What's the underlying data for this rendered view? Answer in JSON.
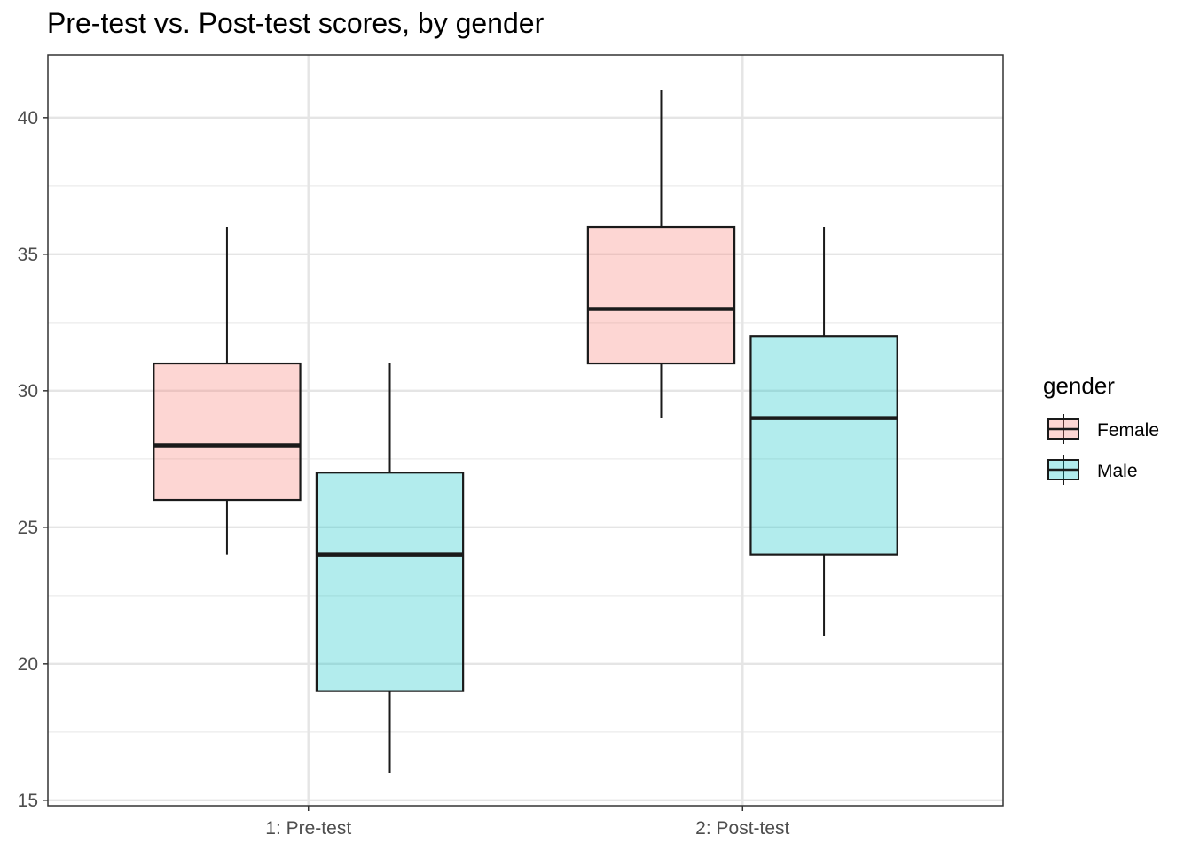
{
  "chart_data": {
    "type": "boxplot",
    "title": "Pre-test vs. Post-test scores, by gender",
    "xlabel": "",
    "ylabel": "",
    "categories": [
      "1: Pre-test",
      "2: Post-test"
    ],
    "ylim": [
      14.8,
      42.3
    ],
    "y_ticks": [
      15,
      20,
      25,
      30,
      35,
      40
    ],
    "grid": true,
    "legend": {
      "title": "gender",
      "position": "right"
    },
    "series": [
      {
        "name": "Female",
        "color": "#F8766D",
        "boxes": [
          {
            "category": "1: Pre-test",
            "min": 24,
            "q1": 26,
            "median": 28,
            "q3": 31,
            "max": 36
          },
          {
            "category": "2: Post-test",
            "min": 29,
            "q1": 31,
            "median": 33,
            "q3": 36,
            "max": 41
          }
        ]
      },
      {
        "name": "Male",
        "color": "#00BFC4",
        "boxes": [
          {
            "category": "1: Pre-test",
            "min": 16,
            "q1": 19,
            "median": 24,
            "q3": 27,
            "max": 31
          },
          {
            "category": "2: Post-test",
            "min": 21,
            "q1": 24,
            "median": 29,
            "q3": 32,
            "max": 36
          }
        ]
      }
    ]
  }
}
